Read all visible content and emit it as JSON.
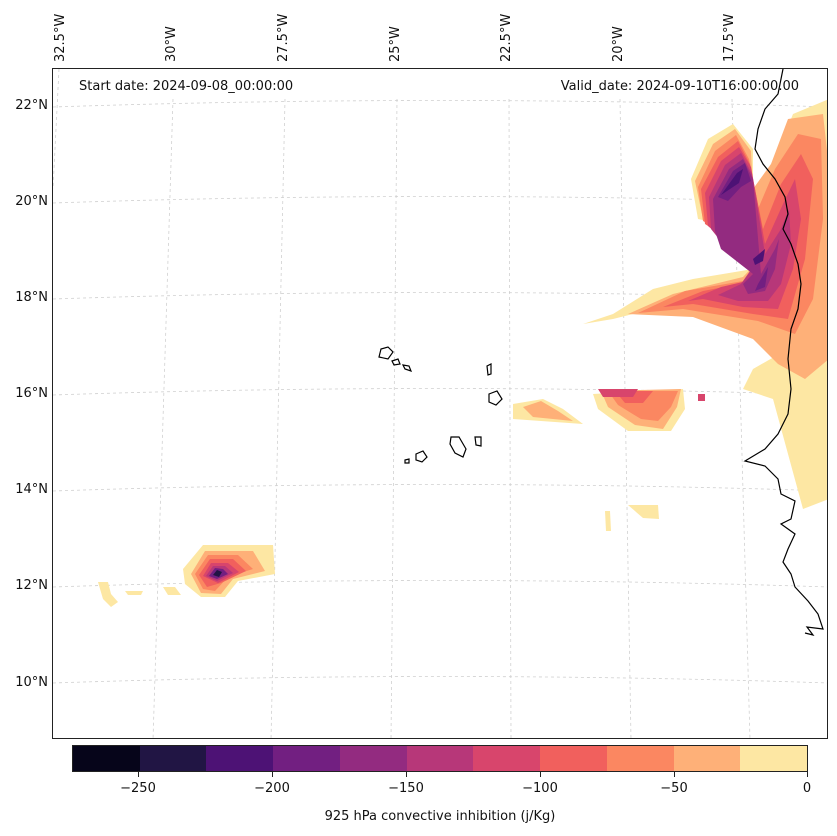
{
  "map": {
    "lon_labels": [
      "32.5°W",
      "30°W",
      "27.5°W",
      "25°W",
      "22.5°W",
      "20°W",
      "17.5°W"
    ],
    "lat_labels": [
      "22°N",
      "20°N",
      "18°N",
      "16°N",
      "14°N",
      "12°N",
      "10°N"
    ],
    "start_date": "Start date: 2024-09-08_00:00:00",
    "valid_date": "Valid_date: 2024-09-10T16:00:00.00",
    "gridlines": true
  },
  "colorbar": {
    "label": "925 hPa convective inhibition (j/Kg)",
    "range": [
      -275,
      0
    ],
    "step": 25,
    "ticks": [
      "−250",
      "−200",
      "−150",
      "−100",
      "−50",
      "0"
    ],
    "colors": [
      "#06051a",
      "#211544",
      "#4d1275",
      "#721f81",
      "#932b80",
      "#b73779",
      "#d8456c",
      "#f1605d",
      "#fb8761",
      "#feb078",
      "#fde7a3"
    ]
  },
  "features": {
    "fill_colors": {
      "light": "#fde7a3",
      "peach": "#feb078",
      "orange": "#fb8761",
      "salmon": "#f1605d",
      "pink": "#d8456c",
      "magenta": "#b73779",
      "purple": "#932b80",
      "violet": "#721f81",
      "indigo": "#4d1275",
      "dark": "#211544"
    },
    "coast_color": "#000000"
  }
}
